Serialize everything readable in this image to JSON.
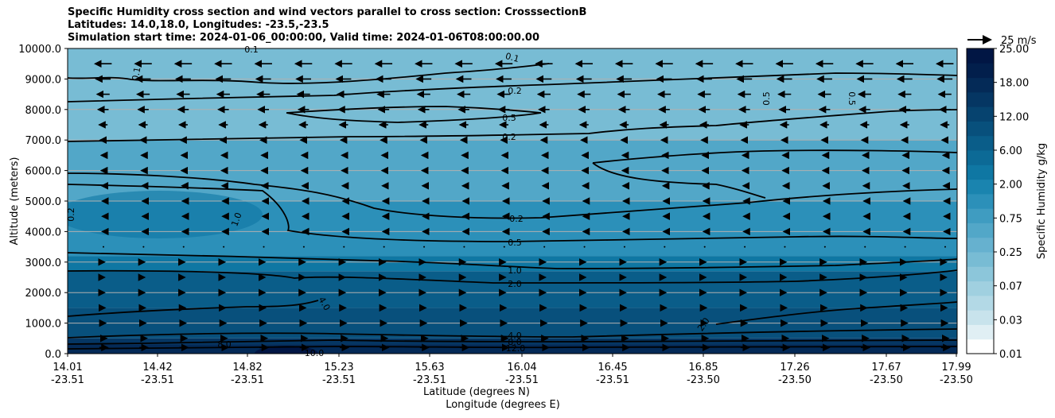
{
  "title_lines": [
    "Specific Humidity cross section and wind vectors parallel to cross section: CrosssectionB",
    "Latitudes: 14.0,18.0, Longitudes: -23.5,-23.5",
    "Simulation start time: 2024-01-06_00:00:00, Valid time: 2024-01-06T08:00:00.00"
  ],
  "chart_data": {
    "type": "heatmap",
    "ylabel": "Altitude (meters)",
    "xlabel_line1": "Latitude (degrees N)",
    "xlabel_line2": "Longitude (degrees E)",
    "ylim": [
      0,
      10000
    ],
    "yticks": [
      "0.0",
      "1000.0",
      "2000.0",
      "3000.0",
      "4000.0",
      "5000.0",
      "6000.0",
      "7000.0",
      "8000.0",
      "9000.0",
      "10000.0"
    ],
    "ytick_values": [
      0,
      1000,
      2000,
      3000,
      4000,
      5000,
      6000,
      7000,
      8000,
      9000,
      10000
    ],
    "xlim": [
      14.01,
      17.99
    ],
    "xticks": [
      {
        "lat": "14.01",
        "lon": "-23.51"
      },
      {
        "lat": "14.42",
        "lon": "-23.51"
      },
      {
        "lat": "14.82",
        "lon": "-23.51"
      },
      {
        "lat": "15.23",
        "lon": "-23.51"
      },
      {
        "lat": "15.63",
        "lon": "-23.51"
      },
      {
        "lat": "16.04",
        "lon": "-23.51"
      },
      {
        "lat": "16.45",
        "lon": "-23.51"
      },
      {
        "lat": "16.85",
        "lon": "-23.50"
      },
      {
        "lat": "17.26",
        "lon": "-23.50"
      },
      {
        "lat": "17.67",
        "lon": "-23.50"
      },
      {
        "lat": "17.99",
        "lon": "-23.50"
      }
    ],
    "colorbar": {
      "label": "Specific Humidity g/kg",
      "ticks": [
        "0.01",
        "0.03",
        "0.07",
        "0.25",
        "0.75",
        "2.00",
        "6.00",
        "12.00",
        "18.00",
        "25.00"
      ],
      "colors": [
        "#ffffff",
        "#e0eff4",
        "#c8e3ec",
        "#b3d9e6",
        "#a0d0e0",
        "#8cc6da",
        "#78bcd4",
        "#66b1cf",
        "#52a7c8",
        "#3f9cc1",
        "#2c90b9",
        "#1a84af",
        "#0f77a3",
        "#0c6a96",
        "#0a5d89",
        "#08507c",
        "#06436f",
        "#053663",
        "#042a57",
        "#021f4c",
        "#011644"
      ]
    },
    "humidity_layers": [
      {
        "altitude_top": 10000,
        "value": 0.1
      },
      {
        "altitude_top": 7000,
        "value": 0.2
      },
      {
        "altitude_top": 5000,
        "value": 0.5
      },
      {
        "altitude_top": 3200,
        "value": 1.0
      },
      {
        "altitude_top": 2700,
        "value": 2.0
      },
      {
        "altitude_top": 1500,
        "value": 4.0
      },
      {
        "altitude_top": 500,
        "value": 8.0
      },
      {
        "altitude_top": 300,
        "value": 12.0
      }
    ],
    "contour_labels": [
      "0.1",
      "0.1",
      "0.1",
      "0.2",
      "0.5",
      "0.2",
      "0.5",
      "0.5",
      "0.2",
      "0.2",
      "0.5",
      "1.0",
      "1.0",
      "2.0",
      "4.0",
      "2.0",
      "4.0",
      "8.0",
      "8.0",
      "12.0",
      "10.0"
    ],
    "wind_levels": [
      {
        "altitude": 9500,
        "speed": -8
      },
      {
        "altitude": 9000,
        "speed": -7
      },
      {
        "altitude": 8500,
        "speed": -6
      },
      {
        "altitude": 8000,
        "speed": -5
      },
      {
        "altitude": 7500,
        "speed": -4
      },
      {
        "altitude": 7000,
        "speed": -3
      },
      {
        "altitude": 6500,
        "speed": -2
      },
      {
        "altitude": 6000,
        "speed": -2
      },
      {
        "altitude": 5500,
        "speed": -1.5
      },
      {
        "altitude": 5000,
        "speed": -1
      },
      {
        "altitude": 4500,
        "speed": -1
      },
      {
        "altitude": 4000,
        "speed": -1
      },
      {
        "altitude": 3500,
        "speed": 0.5
      },
      {
        "altitude": 3000,
        "speed": 1
      },
      {
        "altitude": 2500,
        "speed": 1
      },
      {
        "altitude": 2000,
        "speed": 1
      },
      {
        "altitude": 1500,
        "speed": 1.5
      },
      {
        "altitude": 1000,
        "speed": 2
      },
      {
        "altitude": 500,
        "speed": 3
      },
      {
        "altitude": 200,
        "speed": 4
      }
    ],
    "quiver_key": "25 m/s"
  }
}
